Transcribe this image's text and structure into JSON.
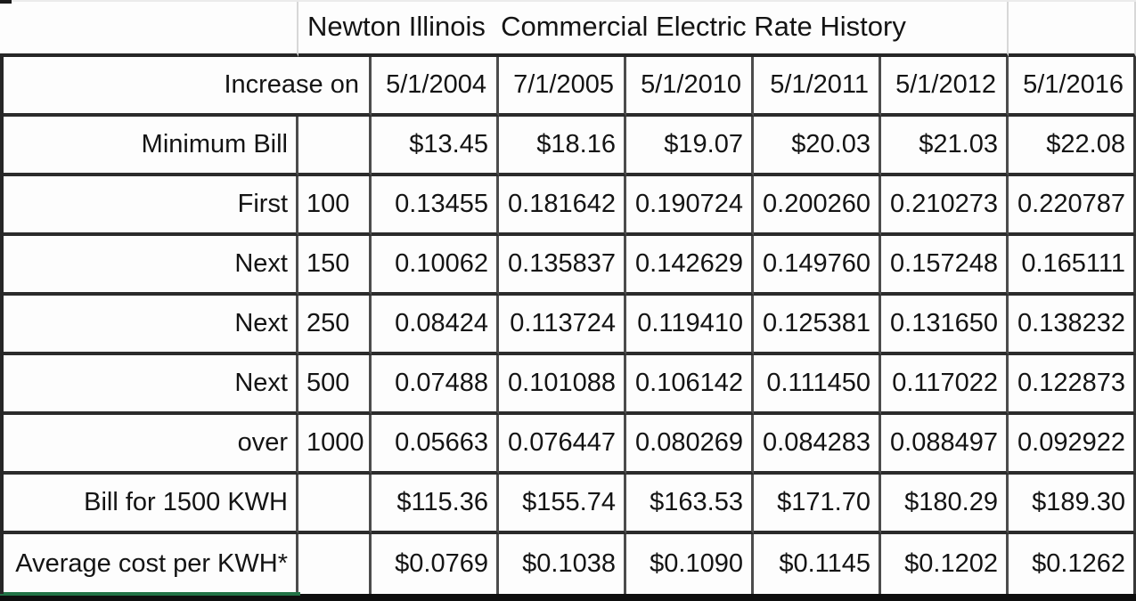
{
  "title": "Newton Illinois  Commercial Electric Rate History",
  "header": {
    "label": "Increase on",
    "dates": [
      "5/1/2004",
      "7/1/2005",
      "5/1/2010",
      "5/1/2011",
      "5/1/2012",
      "5/1/2016"
    ]
  },
  "rows": [
    {
      "label": "Minimum Bill",
      "qty": "",
      "values": [
        "$13.45",
        "$18.16",
        "$19.07",
        "$20.03",
        "$21.03",
        "$22.08"
      ]
    },
    {
      "label": "First",
      "qty": "100",
      "values": [
        "0.13455",
        "0.181642",
        "0.190724",
        "0.200260",
        "0.210273",
        "0.220787"
      ]
    },
    {
      "label": "Next",
      "qty": "150",
      "values": [
        "0.10062",
        "0.135837",
        "0.142629",
        "0.149760",
        "0.157248",
        "0.165111"
      ]
    },
    {
      "label": "Next",
      "qty": "250",
      "values": [
        "0.08424",
        "0.113724",
        "0.119410",
        "0.125381",
        "0.131650",
        "0.138232"
      ]
    },
    {
      "label": "Next",
      "qty": "500",
      "values": [
        "0.07488",
        "0.101088",
        "0.106142",
        "0.111450",
        "0.117022",
        "0.122873"
      ]
    },
    {
      "label": "over",
      "qty": "1000",
      "values": [
        "0.05663",
        "0.076447",
        "0.080269",
        "0.084283",
        "0.088497",
        "0.092922"
      ]
    },
    {
      "label": "Bill for 1500 KWH",
      "qty": "",
      "values": [
        "$115.36",
        "$155.74",
        "$163.53",
        "$171.70",
        "$180.29",
        "$189.30"
      ]
    },
    {
      "label": "Average cost per KWH*",
      "qty": "",
      "values": [
        "$0.0769",
        "$0.1038",
        "$0.1090",
        "$0.1145",
        "$0.1202",
        "$0.1262"
      ]
    }
  ],
  "colors": {
    "grid_horizontal": "#2b2b2b",
    "grid_vertical": "#4c4c4c",
    "title_row_divider": "#d8d8d8",
    "bottom_bar": "#0e0e0e",
    "selection_green": "#217346",
    "text": "#141414",
    "background": "#ffffff"
  }
}
